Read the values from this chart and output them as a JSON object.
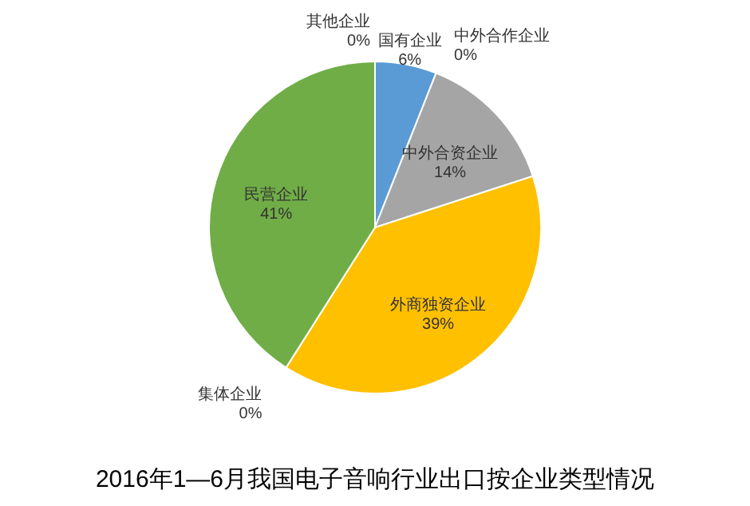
{
  "chart_data": {
    "type": "pie",
    "title": "2016年1—6月我国电子音响行业出口按企业类型情况",
    "categories": [
      "国有企业",
      "中外合作企业",
      "中外合资企业",
      "外商独资企业",
      "集体企业",
      "民营企业",
      "其他企业"
    ],
    "values": [
      6,
      0,
      14,
      39,
      0,
      41,
      0
    ],
    "value_labels": [
      "6%",
      "0%",
      "14%",
      "39%",
      "0%",
      "41%",
      "0%"
    ],
    "colors": [
      "#5b9bd5",
      "#ed7d31",
      "#a5a5a5",
      "#ffc000",
      "#4472c4",
      "#70ad47",
      "#264478"
    ]
  }
}
